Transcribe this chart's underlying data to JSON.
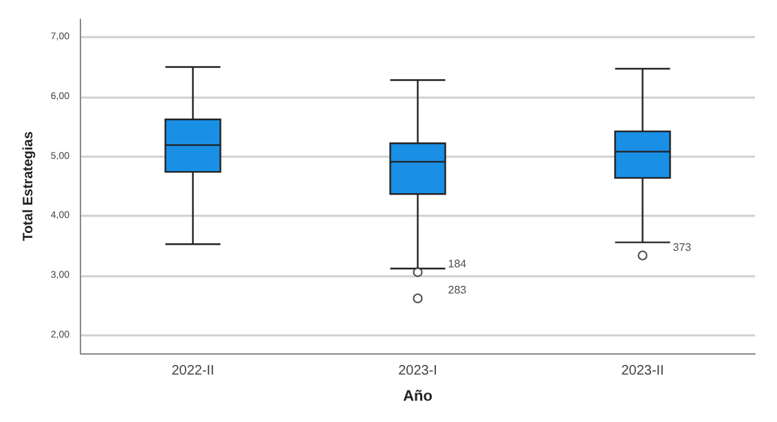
{
  "chart_data": {
    "type": "box",
    "xlabel": "Año",
    "ylabel": "Total Estrategias",
    "categories": [
      "2022-II",
      "2023-I",
      "2023-II"
    ],
    "boxes": [
      {
        "low": 3.53,
        "q1": 4.74,
        "median": 5.19,
        "q3": 5.62,
        "high": 6.5
      },
      {
        "low": 3.12,
        "q1": 4.37,
        "median": 4.91,
        "q3": 5.22,
        "high": 6.28,
        "outliers": [
          3.06,
          2.62
        ]
      },
      {
        "low": 3.56,
        "q1": 4.64,
        "median": 5.08,
        "q3": 5.42,
        "high": 6.47,
        "outliers": [
          3.34
        ]
      }
    ],
    "color": "#1a8fe6",
    "ylim": [
      1.7,
      7.3
    ],
    "yticks": [
      {
        "value": 2,
        "label": "2,00"
      },
      {
        "value": 3,
        "label": "3,00"
      },
      {
        "value": 4,
        "label": "4,00"
      },
      {
        "value": 5,
        "label": "5,00"
      },
      {
        "value": 6,
        "label": "6,00"
      },
      {
        "value": 7,
        "label": "7,00"
      }
    ],
    "grid": "y",
    "marker": "circle",
    "annotations": [
      "184",
      "283",
      "373"
    ]
  }
}
